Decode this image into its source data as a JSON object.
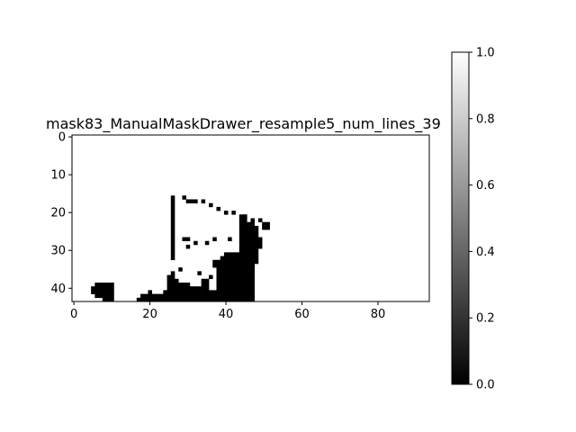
{
  "chart_data": [
    {
      "type": "heatmap",
      "title": "mask83_ManualMaskDrawer_resample5_num_lines_39",
      "xlabel": "",
      "ylabel": "",
      "colormap": "gray",
      "grid": false,
      "image_shape": [
        44,
        94
      ],
      "xlim": [
        -0.5,
        93.5
      ],
      "ylim": [
        43.5,
        -0.5
      ],
      "xticks": [
        0,
        20,
        40,
        60,
        80
      ],
      "xtick_labels": [
        "0",
        "20",
        "40",
        "60",
        "80"
      ],
      "yticks": [
        0,
        10,
        20,
        30,
        40
      ],
      "ytick_labels": [
        "0",
        "10",
        "20",
        "30",
        "40"
      ],
      "background_value": 1,
      "foreground_value": 0,
      "mask_rects": [
        [
          5,
          40,
          1,
          2
        ],
        [
          6,
          39,
          5,
          4
        ],
        [
          8,
          43,
          3,
          1
        ],
        [
          17,
          43,
          1,
          1
        ],
        [
          18,
          42,
          2,
          2
        ],
        [
          20,
          41,
          1,
          3
        ],
        [
          21,
          42,
          3,
          2
        ],
        [
          24,
          41,
          2,
          3
        ],
        [
          25,
          37,
          2,
          7
        ],
        [
          26,
          36,
          1,
          1
        ],
        [
          27,
          38,
          1,
          6
        ],
        [
          28,
          35,
          1,
          1
        ],
        [
          28,
          39,
          3,
          5
        ],
        [
          31,
          40,
          3,
          4
        ],
        [
          33,
          36,
          1,
          1
        ],
        [
          34,
          38,
          2,
          6
        ],
        [
          36,
          37,
          1,
          1
        ],
        [
          36,
          41,
          3,
          3
        ],
        [
          38,
          40,
          1,
          1
        ],
        [
          39,
          32,
          1,
          1
        ],
        [
          37,
          33,
          3,
          2
        ],
        [
          38,
          35,
          2,
          2
        ],
        [
          38,
          37,
          2,
          7
        ],
        [
          40,
          31,
          7,
          13
        ],
        [
          47,
          36,
          1,
          8
        ],
        [
          44,
          22,
          2,
          9
        ],
        [
          44,
          21,
          2,
          1
        ],
        [
          46,
          23,
          2,
          13
        ],
        [
          48,
          26,
          1,
          8
        ],
        [
          49,
          27,
          1,
          3
        ],
        [
          48,
          24,
          1,
          1
        ],
        [
          50,
          23,
          2,
          2
        ],
        [
          49,
          22,
          1,
          1
        ],
        [
          48,
          25,
          1,
          1
        ],
        [
          45,
          21,
          1,
          1
        ],
        [
          47,
          22,
          1,
          1
        ],
        [
          26,
          16,
          1,
          17
        ],
        [
          29,
          16,
          1,
          1
        ],
        [
          30,
          17,
          3,
          1
        ],
        [
          34,
          17,
          1,
          1
        ],
        [
          36,
          18,
          1,
          1
        ],
        [
          38,
          19,
          1,
          1
        ],
        [
          40,
          20,
          1,
          1
        ],
        [
          42,
          20,
          1,
          1
        ],
        [
          29,
          27,
          2,
          1
        ],
        [
          30,
          29,
          1,
          1
        ],
        [
          32,
          28,
          1,
          1
        ],
        [
          35,
          28,
          1,
          1
        ],
        [
          37,
          27,
          1,
          1
        ],
        [
          41,
          27,
          1,
          1
        ]
      ]
    },
    {
      "type": "heatmap",
      "title": "",
      "role": "colorbar",
      "colormap": "gray",
      "range": [
        0.0,
        1.0
      ],
      "ticks": [
        0.0,
        0.2,
        0.4,
        0.6,
        0.8,
        1.0
      ],
      "tick_labels": [
        "0.0",
        "0.2",
        "0.4",
        "0.6",
        "0.8",
        "1.0"
      ]
    }
  ]
}
